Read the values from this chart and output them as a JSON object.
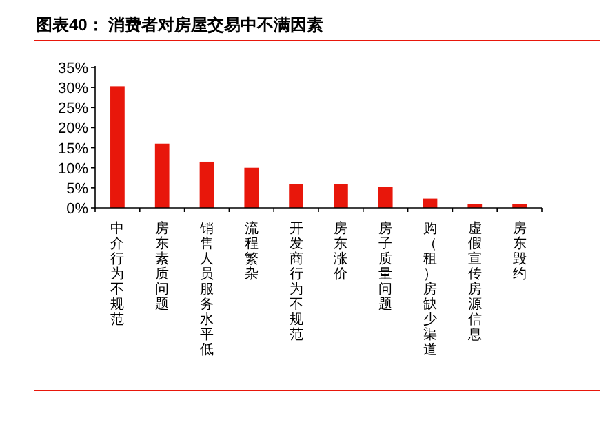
{
  "chart_data": {
    "type": "bar",
    "title": "图表40：  消费者对房屋交易中不满因素",
    "categories": [
      "中介行为不规范",
      "房东素质问题",
      "销售人员服务水平低",
      "流程繁杂",
      "开发商行为不规范",
      "房东涨价",
      "房子质量问题",
      "购（租）房缺少渠道",
      "虚假宣传房源信息",
      "房东毁约"
    ],
    "values": [
      30.3,
      16,
      11.5,
      10,
      6,
      6,
      5.3,
      2.3,
      1,
      1
    ],
    "color": "#e8170b",
    "ylim": [
      0,
      35
    ],
    "yticks": [
      {
        "value": 0,
        "label": "0%"
      },
      {
        "value": 5,
        "label": "5%"
      },
      {
        "value": 10,
        "label": "10%"
      },
      {
        "value": 15,
        "label": "15%"
      },
      {
        "value": 20,
        "label": "20%"
      },
      {
        "value": 25,
        "label": "25%"
      },
      {
        "value": 30,
        "label": "30%"
      },
      {
        "value": 35,
        "label": "35%"
      }
    ],
    "grid": false
  }
}
